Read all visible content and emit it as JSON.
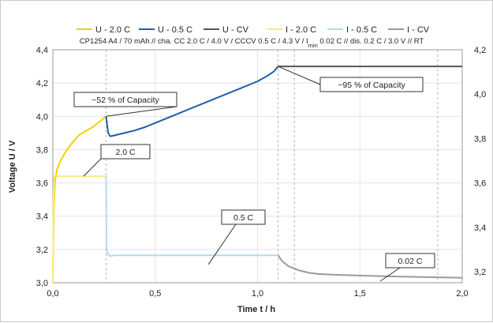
{
  "chart_data": {
    "type": "line",
    "subtitle": {
      "before": "CP1254 A4 / 70 mAh // cha. CC 2.0 C / 4.0 V / CCCV 0.5 C / 4.3 V / I",
      "sub": "min",
      "after": " 0.02 C // dis. 0.2 C / 3.0 V // RT"
    },
    "xlabel": "Time t / h",
    "ylabel": "Voltage U / V",
    "xlim": [
      0,
      2
    ],
    "ylim_left": [
      3.0,
      4.4
    ],
    "ylim_right": [
      3.15,
      4.2
    ],
    "x_ticks": [
      "0,0",
      "0,5",
      "1,0",
      "1,5",
      "2,0"
    ],
    "y_ticks_left": [
      "3,0",
      "3,2",
      "3,4",
      "3,6",
      "3,8",
      "4,0",
      "4,2",
      "4,4"
    ],
    "y_ticks_right": [
      "3,2",
      "3,4",
      "3,6",
      "3,8",
      "4,0",
      "4,2"
    ],
    "grid": true,
    "legend_position": "top",
    "series": [
      {
        "name": "U - 2.0 C",
        "color": "#f5d000",
        "axis": "left",
        "x": [
          0,
          0.002,
          0.005,
          0.01,
          0.02,
          0.04,
          0.07,
          0.1,
          0.13,
          0.16,
          0.2,
          0.23,
          0.26
        ],
        "y": [
          3.0,
          3.2,
          3.45,
          3.6,
          3.68,
          3.74,
          3.8,
          3.85,
          3.89,
          3.91,
          3.94,
          3.97,
          4.0
        ]
      },
      {
        "name": "U - 0.5 C",
        "color": "#1f5fa8",
        "axis": "left",
        "x": [
          0.26,
          0.265,
          0.27,
          0.28,
          0.3,
          0.35,
          0.4,
          0.45,
          0.5,
          0.6,
          0.7,
          0.8,
          0.9,
          1.0,
          1.05,
          1.08,
          1.1
        ],
        "y": [
          4.0,
          3.95,
          3.9,
          3.88,
          3.885,
          3.9,
          3.915,
          3.935,
          3.96,
          4.01,
          4.06,
          4.11,
          4.16,
          4.21,
          4.245,
          4.27,
          4.3
        ]
      },
      {
        "name": "U - CV",
        "color": "#555555",
        "axis": "left",
        "x": [
          1.1,
          2.0
        ],
        "y": [
          4.3,
          4.3
        ]
      },
      {
        "name": "I - 2.0 C",
        "color": "#f8ec80",
        "axis": "left",
        "x": [
          0,
          0.003,
          0.006,
          0.26
        ],
        "y": [
          3.0,
          3.5,
          3.64,
          3.64
        ]
      },
      {
        "name": "I - 0.5 C",
        "color": "#b8d8ec",
        "axis": "left",
        "x": [
          0.26,
          0.262,
          0.27,
          0.28,
          0.3,
          1.1
        ],
        "y": [
          3.64,
          3.2,
          3.17,
          3.16,
          3.165,
          3.165
        ]
      },
      {
        "name": "I - CV",
        "color": "#9a9a9a",
        "axis": "left",
        "x": [
          1.1,
          1.12,
          1.15,
          1.2,
          1.25,
          1.3,
          1.4,
          1.5,
          1.6,
          1.7,
          1.8,
          1.9,
          2.0
        ],
        "y": [
          3.165,
          3.13,
          3.1,
          3.075,
          3.06,
          3.052,
          3.047,
          3.043,
          3.04,
          3.037,
          3.034,
          3.032,
          3.03
        ]
      }
    ],
    "vlines_x": [
      0.26,
      1.1,
      1.18,
      1.88
    ],
    "annotations": [
      {
        "text": "~52 % of Capacity",
        "ax": 0.26,
        "ay": 4.0
      },
      {
        "text": "~95 % of Capacity",
        "ax": 1.1,
        "ay": 4.3
      },
      {
        "text": "2.0 C",
        "ax": 0.15,
        "ay": 3.64
      },
      {
        "text": "0.5 C",
        "ax": 0.76,
        "ay": 3.11
      },
      {
        "text": "0.02 C",
        "ax": 1.6,
        "ay": 3.01
      }
    ]
  }
}
